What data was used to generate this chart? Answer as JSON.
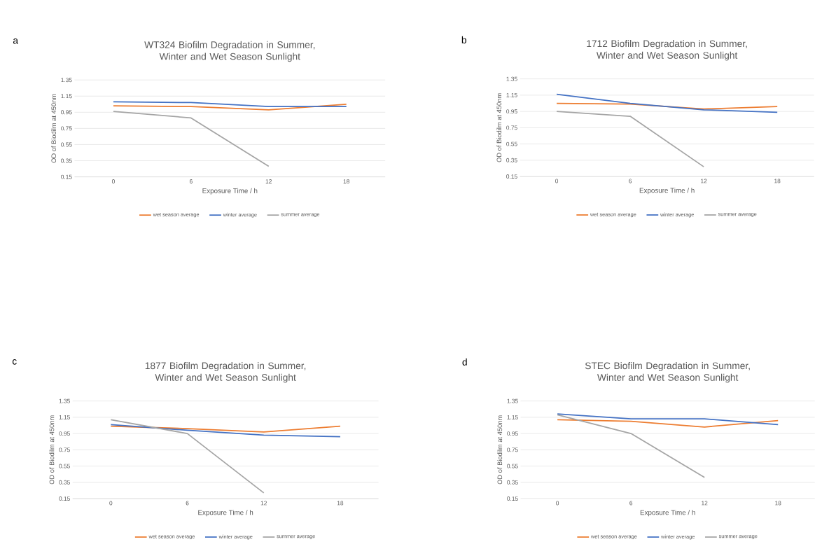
{
  "chart_data": [
    {
      "type": "line",
      "title": "WT324 Biofilm Degradation in Summer, Winter and Wet Season Sunlight",
      "xlabel": "Exposure Time / h",
      "ylabel": "OD of Biodilm at 450nm",
      "categories": [
        "0",
        "6",
        "12",
        "18"
      ],
      "series": [
        {
          "name": "wet season average",
          "color": "#ed7d31",
          "values": [
            1.03,
            1.02,
            0.98,
            1.05
          ]
        },
        {
          "name": "winter average",
          "color": "#4472c4",
          "values": [
            1.08,
            1.07,
            1.02,
            1.02
          ]
        },
        {
          "name": "summer average",
          "color": "#a5a5a5",
          "values": [
            0.96,
            0.88,
            0.28,
            null
          ]
        }
      ],
      "ylim": [
        0.15,
        1.35
      ],
      "yticks": [
        0.15,
        0.35,
        0.55,
        0.75,
        0.95,
        1.15,
        1.35
      ],
      "grid": "y",
      "legend": "bottom",
      "annotations": [
        "a"
      ]
    },
    {
      "type": "line",
      "title": "1712 Biofilm Degradation in Summer, Winter and Wet Season Sunlight",
      "xlabel": "Exposure Time / h",
      "ylabel": "OD of Biodilm at 450nm",
      "categories": [
        "0",
        "6",
        "12",
        "18"
      ],
      "series": [
        {
          "name": "wet season average",
          "color": "#ed7d31",
          "values": [
            1.05,
            1.04,
            0.98,
            1.01
          ]
        },
        {
          "name": "winter average",
          "color": "#4472c4",
          "values": [
            1.16,
            1.05,
            0.97,
            0.94
          ]
        },
        {
          "name": "summer average",
          "color": "#a5a5a5",
          "values": [
            0.95,
            0.89,
            0.27,
            null
          ]
        }
      ],
      "ylim": [
        0.15,
        1.35
      ],
      "yticks": [
        0.15,
        0.35,
        0.55,
        0.75,
        0.95,
        1.15,
        1.35
      ],
      "grid": "y",
      "legend": "bottom",
      "annotations": [
        "b"
      ]
    },
    {
      "type": "line",
      "title": "1877 Biofilm Degradation in Summer, Winter and Wet Season Sunlight",
      "xlabel": "Exposure Time / h",
      "ylabel": "OD of Biodilm at 450nm",
      "categories": [
        "0",
        "6",
        "12",
        "18"
      ],
      "series": [
        {
          "name": "wet season average",
          "color": "#ed7d31",
          "values": [
            1.04,
            1.01,
            0.97,
            1.04
          ]
        },
        {
          "name": "winter average",
          "color": "#4472c4",
          "values": [
            1.06,
            0.99,
            0.93,
            0.91
          ]
        },
        {
          "name": "summer average",
          "color": "#a5a5a5",
          "values": [
            1.12,
            0.95,
            0.22,
            null
          ]
        }
      ],
      "ylim": [
        0.15,
        1.35
      ],
      "yticks": [
        0.15,
        0.35,
        0.55,
        0.75,
        0.95,
        1.15,
        1.35
      ],
      "grid": "y",
      "legend": "bottom",
      "annotations": [
        "c"
      ]
    },
    {
      "type": "line",
      "title": "STEC Biofilm Degradation in Summer, Winter and Wet Season Sunlight",
      "xlabel": "Exposure Time / h",
      "ylabel": "OD of Biodilm at 450nm",
      "categories": [
        "0",
        "6",
        "12",
        "18"
      ],
      "series": [
        {
          "name": "wet season average",
          "color": "#ed7d31",
          "values": [
            1.12,
            1.1,
            1.03,
            1.11
          ]
        },
        {
          "name": "winter average",
          "color": "#4472c4",
          "values": [
            1.19,
            1.13,
            1.13,
            1.06
          ]
        },
        {
          "name": "summer average",
          "color": "#a5a5a5",
          "values": [
            1.18,
            0.95,
            0.41,
            null
          ]
        }
      ],
      "ylim": [
        0.15,
        1.35
      ],
      "yticks": [
        0.15,
        0.35,
        0.55,
        0.75,
        0.95,
        1.15,
        1.35
      ],
      "grid": "y",
      "legend": "bottom",
      "annotations": [
        "d"
      ]
    }
  ]
}
